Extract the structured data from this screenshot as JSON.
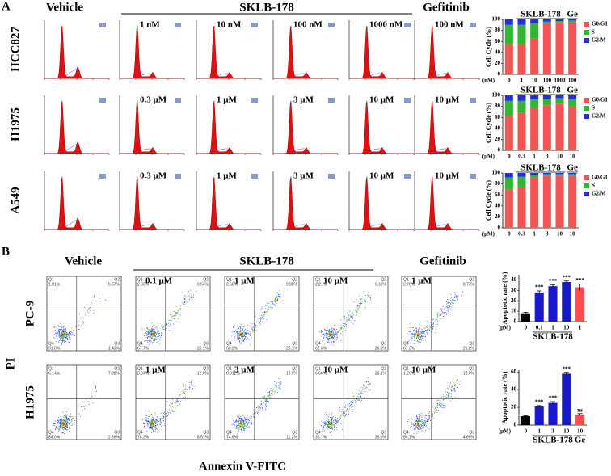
{
  "panel_a": {
    "label": "A",
    "headers": {
      "vehicle": "Vehicle",
      "group": "SKLB-178",
      "gefitinib": "Gefitinib"
    },
    "rows": [
      {
        "cell_line": "HCC827",
        "conditions": [
          "1 nM",
          "10 nM",
          "100 nM",
          "1000 nM",
          "100 nM"
        ]
      },
      {
        "cell_line": "H1975",
        "conditions": [
          "0.3 μM",
          "1 μM",
          "3 μM",
          "10 μM",
          "10 μM"
        ]
      },
      {
        "cell_line": "A549",
        "conditions": [
          "0.3 μM",
          "1 μM",
          "3 μM",
          "10 μM",
          "10 μM"
        ]
      }
    ]
  },
  "panel_b": {
    "label": "B",
    "headers": {
      "vehicle": "Vehicle",
      "group": "SKLB-178",
      "gefitinib": "Gefitinib"
    },
    "y_axis": "PI",
    "x_axis": "Annexin V-FITC",
    "quadrant_names": [
      "Q1",
      "Q2",
      "Q3",
      "Q4"
    ],
    "rows": [
      {
        "cell_line": "PC-9",
        "conditions": [
          "0.1 μM",
          "1 μM",
          "10 μM",
          "1 μM"
        ],
        "plots": [
          [
            "1.01%",
            "6.57%",
            "1.43%",
            "91.0%"
          ],
          [
            "2.60%",
            "9.54%",
            "20.1%",
            "67.7%"
          ],
          [
            "2.58%",
            "9.08%",
            "25.1%",
            "63.2%"
          ],
          [
            "2.21%",
            "9.10%",
            "26.1%",
            "62.6%"
          ],
          [
            "2.78%",
            "8.73%",
            "21.2%",
            "67.3%"
          ]
        ]
      },
      {
        "cell_line": "H1975",
        "conditions": [
          "1 μM",
          "3 μM",
          "10 μM",
          "10 μM"
        ],
        "plots": [
          [
            "6.14%",
            "7.28%",
            "2.59%",
            "84.0%"
          ],
          [
            "3.34%",
            "12.0%",
            "8.51%",
            "76.2%"
          ],
          [
            "0.912%",
            "13.5%",
            "11.2%",
            "74.6%"
          ],
          [
            "6.66%",
            "26.1%",
            "30.6%",
            "36.7%"
          ],
          [
            "1.26%",
            "10.0%",
            "4.65%",
            "84.1%"
          ]
        ]
      }
    ]
  },
  "chart_data": [
    {
      "type": "stacked_bar",
      "ylabel": "Cell Cycle (%)",
      "unit_label": "(nM)",
      "categories": [
        "0",
        "1",
        "10",
        "100",
        "1000",
        "100"
      ],
      "category_groups": [
        null,
        "SKLB-178",
        "SKLB-178",
        "SKLB-178",
        "SKLB-178",
        "Ge"
      ],
      "series": [
        {
          "name": "G0/G1",
          "color": "#f25555",
          "values": [
            55,
            55,
            65,
            93,
            95,
            95
          ]
        },
        {
          "name": "S",
          "color": "#2fb82f",
          "values": [
            35,
            35,
            28,
            3,
            2,
            3
          ]
        },
        {
          "name": "G2/M",
          "color": "#2233cc",
          "values": [
            10,
            10,
            7,
            4,
            3,
            2
          ]
        }
      ],
      "ylim": [
        0,
        100
      ],
      "yticks": [
        0,
        20,
        40,
        60,
        80,
        100
      ],
      "legend": "right"
    },
    {
      "type": "stacked_bar",
      "ylabel": "Cell Cycle (%)",
      "unit_label": "(μM)",
      "categories": [
        "0",
        "0.3",
        "1",
        "3",
        "10",
        "10"
      ],
      "category_groups": [
        null,
        "SKLB-178",
        "SKLB-178",
        "SKLB-178",
        "SKLB-178",
        "Ge"
      ],
      "series": [
        {
          "name": "G0/G1",
          "color": "#f25555",
          "values": [
            62,
            68,
            78,
            82,
            85,
            80
          ]
        },
        {
          "name": "S",
          "color": "#2fb82f",
          "values": [
            28,
            22,
            15,
            12,
            10,
            13
          ]
        },
        {
          "name": "G2/M",
          "color": "#2233cc",
          "values": [
            10,
            10,
            7,
            6,
            5,
            7
          ]
        }
      ],
      "ylim": [
        0,
        100
      ],
      "yticks": [
        0,
        20,
        40,
        60,
        80,
        100
      ],
      "legend": "right"
    },
    {
      "type": "stacked_bar",
      "ylabel": "Cell Cycle (%)",
      "unit_label": "(μM)",
      "categories": [
        "0",
        "0.3",
        "1",
        "3",
        "10",
        "10"
      ],
      "category_groups": [
        null,
        "SKLB-178",
        "SKLB-178",
        "SKLB-178",
        "SKLB-178",
        "Ge"
      ],
      "series": [
        {
          "name": "G0/G1",
          "color": "#f25555",
          "values": [
            70,
            75,
            92,
            95,
            95,
            95
          ]
        },
        {
          "name": "S",
          "color": "#2fb82f",
          "values": [
            22,
            18,
            5,
            3,
            3,
            3
          ]
        },
        {
          "name": "G2/M",
          "color": "#2233cc",
          "values": [
            8,
            7,
            3,
            2,
            2,
            2
          ]
        }
      ],
      "ylim": [
        0,
        100
      ],
      "yticks": [
        0,
        20,
        40,
        60,
        80,
        100
      ],
      "legend": "right"
    },
    {
      "type": "bar",
      "ylabel": "Apoptotic rate (%)",
      "unit_label": "(μM)",
      "categories": [
        "0",
        "0.1",
        "1",
        "10",
        "1"
      ],
      "category_groups": [
        null,
        "SKLB-178",
        "SKLB-178",
        "SKLB-178",
        null
      ],
      "values": [
        8,
        28,
        34,
        38,
        33
      ],
      "errors": [
        1,
        1.5,
        1.5,
        1,
        3
      ],
      "colors": [
        "#000000",
        "#1a1acc",
        "#1a1acc",
        "#1a1acc",
        "#ff4d4d"
      ],
      "significance": [
        null,
        "***",
        "***",
        "***",
        "***"
      ],
      "ylim": [
        0,
        45
      ],
      "yticks": [
        0,
        10,
        20,
        30,
        40
      ]
    },
    {
      "type": "bar",
      "ylabel": "Apoptotic rate (%)",
      "unit_label": "(μM)",
      "categories": [
        "0",
        "1",
        "3",
        "10",
        "10"
      ],
      "category_groups": [
        null,
        "SKLB-178",
        "SKLB-178",
        "SKLB-178",
        "Ge"
      ],
      "values": [
        10,
        21,
        25,
        58,
        12
      ],
      "errors": [
        0.5,
        1,
        1.5,
        1.5,
        1
      ],
      "colors": [
        "#000000",
        "#1a1acc",
        "#1a1acc",
        "#1a1acc",
        "#ff4d4d"
      ],
      "significance": [
        null,
        "***",
        "***",
        "***",
        "ns"
      ],
      "ylim": [
        0,
        62
      ],
      "yticks": [
        0,
        20,
        40,
        60
      ]
    }
  ]
}
